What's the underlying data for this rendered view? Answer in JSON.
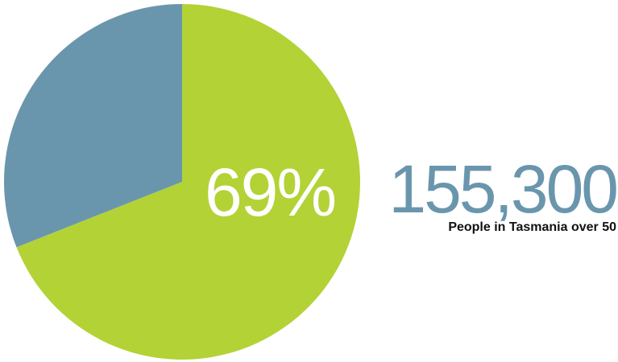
{
  "chart_data": {
    "type": "pie",
    "slices": [
      {
        "value": 69,
        "color": "#b3d236"
      },
      {
        "value": 31,
        "color": "#6a96ad"
      }
    ],
    "center_label": "69%"
  },
  "stat": {
    "value": "155,300",
    "caption": "People in Tasmania over 50",
    "color": "#6a96ad"
  }
}
